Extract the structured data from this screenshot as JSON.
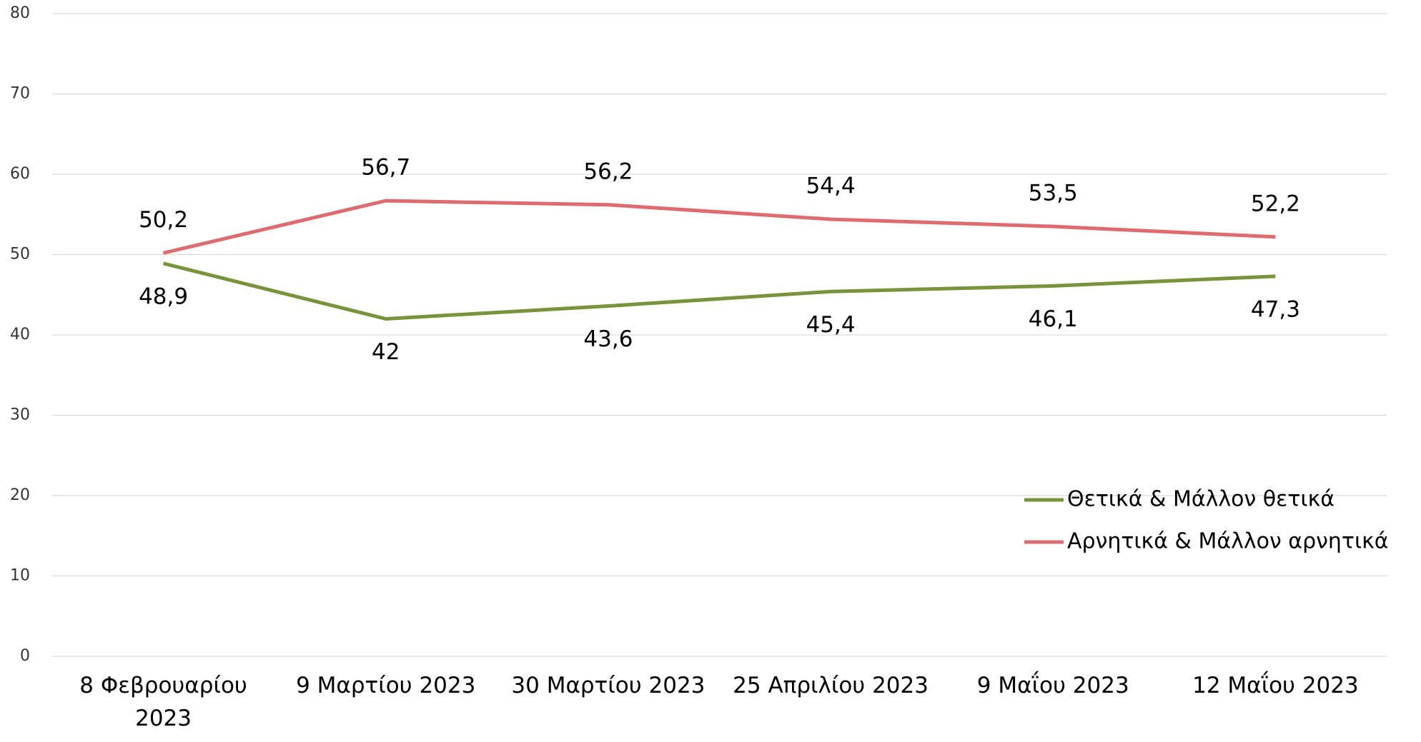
{
  "chart_data": {
    "type": "line",
    "categories": [
      "8 Φεβρουαρίου 2023",
      "9 Μαρτίου 2023",
      "30 Μαρτίου 2023",
      "25 Απριλίου 2023",
      "9 Μαΐου 2023",
      "12 Μαΐου 2023"
    ],
    "series": [
      {
        "name": "Θετικά & Μάλλον θετικά",
        "color": "#77933c",
        "values": [
          48.9,
          42,
          43.6,
          45.4,
          46.1,
          47.3
        ],
        "value_labels": [
          "48,9",
          "42",
          "43,6",
          "45,4",
          "46,1",
          "47,3"
        ]
      },
      {
        "name": "Αρνητικά & Μάλλον αρνητικά",
        "color": "#de6b70",
        "values": [
          50.2,
          56.7,
          56.2,
          54.4,
          53.5,
          52.2
        ],
        "value_labels": [
          "50,2",
          "56,7",
          "56,2",
          "54,4",
          "53,5",
          "52,2"
        ]
      }
    ],
    "ylim": [
      0,
      80
    ],
    "yticks": [
      0,
      10,
      20,
      30,
      40,
      50,
      60,
      70,
      80
    ],
    "grid": true,
    "legend": "lower right"
  }
}
